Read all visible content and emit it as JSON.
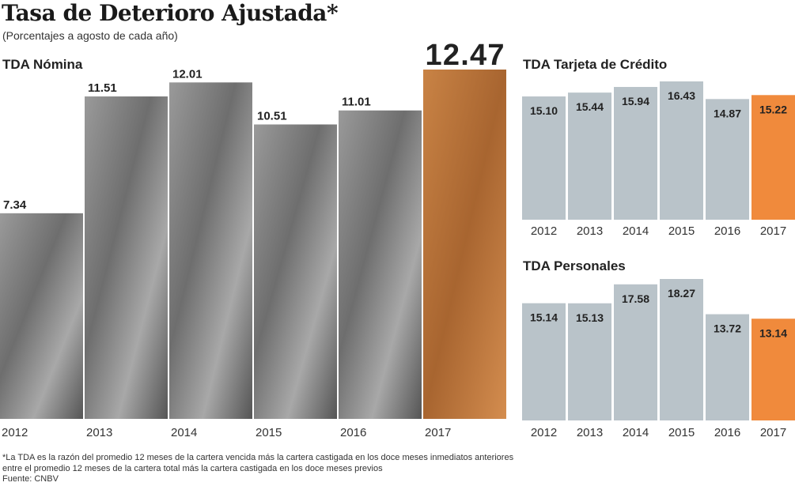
{
  "title": "Tasa de Deterioro Ajustada*",
  "subtitle": "(Porcentajes a agosto de cada año)",
  "footnote": {
    "line1": "*La TDA es la razón del promedio 12 meses de la cartera vencida más la cartera castigada en los doce meses inmediatos anteriores",
    "line2": "entre el promedio 12 meses de la cartera total más la cartera castigada en los doce meses previos",
    "source": "Fuente: CNBV"
  },
  "colors": {
    "bar": "#b9c3c9",
    "highlight": "#f08a3c",
    "photo_bar": "#8a8a8a",
    "highlight_photo": "#c97a3e"
  },
  "chart_data": [
    {
      "type": "bar",
      "title": "TDA Nómina",
      "categories": [
        "2012",
        "2013",
        "2014",
        "2015",
        "2016",
        "2017"
      ],
      "values": [
        7.34,
        11.51,
        12.01,
        10.51,
        11.01,
        12.47
      ],
      "labels": [
        "7.34",
        "11.51",
        "12.01",
        "10.51",
        "11.01",
        "12.47"
      ],
      "highlight_index": 5,
      "ylim": [
        0,
        12.47
      ],
      "grid": false
    },
    {
      "type": "bar",
      "title": "TDA Tarjeta de Crédito",
      "categories": [
        "2012",
        "2013",
        "2014",
        "2015",
        "2016",
        "2017"
      ],
      "values": [
        15.1,
        15.44,
        15.94,
        16.43,
        14.87,
        15.22
      ],
      "labels": [
        "15.10",
        "15.44",
        "15.94",
        "16.43",
        "14.87",
        "15.22"
      ],
      "highlight_index": 5,
      "ylim": [
        4.2,
        16.43
      ],
      "grid": false
    },
    {
      "type": "bar",
      "title": "TDA Personales",
      "categories": [
        "2012",
        "2013",
        "2014",
        "2015",
        "2016",
        "2017"
      ],
      "values": [
        15.14,
        15.13,
        17.58,
        18.27,
        13.72,
        13.14
      ],
      "labels": [
        "15.14",
        "15.13",
        "17.58",
        "18.27",
        "13.72",
        "13.14"
      ],
      "highlight_index": 5,
      "ylim": [
        0,
        18.27
      ],
      "grid": false
    }
  ]
}
